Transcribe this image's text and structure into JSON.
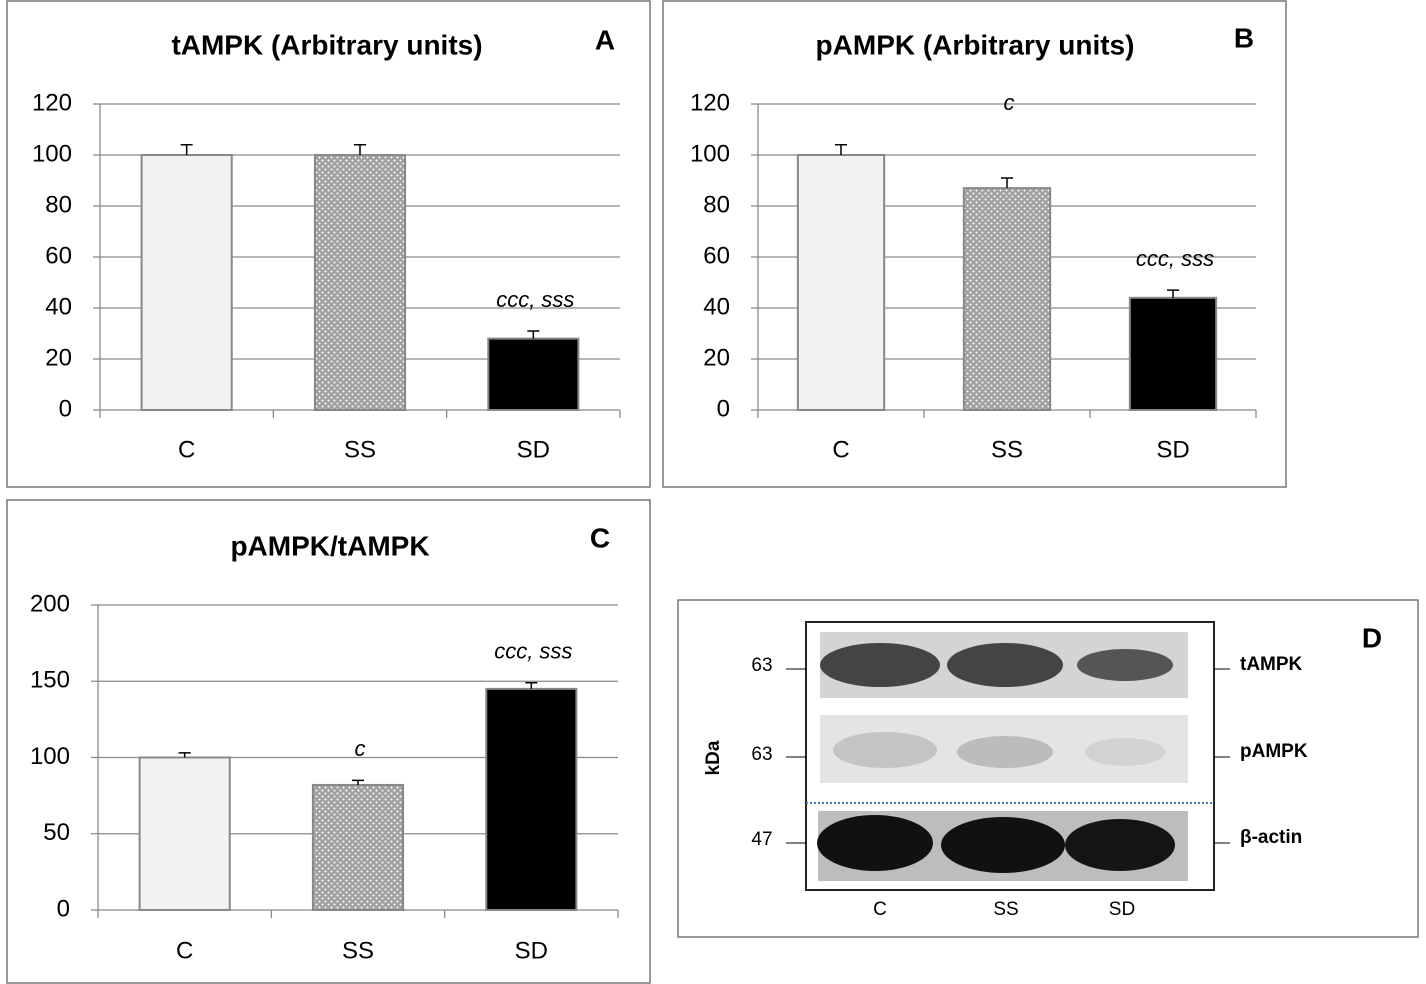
{
  "chart_data": [
    {
      "type": "bar",
      "title": "tAMPK (Arbitrary units)",
      "panel": "A",
      "categories": [
        "C",
        "SS",
        "SD"
      ],
      "values": [
        100,
        100,
        28
      ],
      "errors": [
        4,
        4,
        3
      ],
      "annotations": [
        null,
        null,
        "ccc, sss"
      ],
      "fills": [
        "#f2f2f2",
        "dots",
        "#000000"
      ],
      "ylim": [
        0,
        120
      ],
      "yticks": [
        0,
        20,
        40,
        60,
        80,
        100,
        120
      ],
      "grid": true
    },
    {
      "type": "bar",
      "title": "pAMPK (Arbitrary units)",
      "panel": "B",
      "categories": [
        "C",
        "SS",
        "SD"
      ],
      "values": [
        100,
        87,
        44
      ],
      "errors": [
        4,
        4,
        3
      ],
      "annotations": [
        null,
        "c",
        "ccc, sss"
      ],
      "fills": [
        "#f2f2f2",
        "dots",
        "#000000"
      ],
      "ylim": [
        0,
        120
      ],
      "yticks": [
        0,
        20,
        40,
        60,
        80,
        100,
        120
      ],
      "grid": true
    },
    {
      "type": "bar",
      "title": "pAMPK/tAMPK",
      "panel": "C",
      "categories": [
        "C",
        "SS",
        "SD"
      ],
      "values": [
        100,
        82,
        145
      ],
      "errors": [
        3,
        3,
        4
      ],
      "annotations": [
        null,
        "c",
        "ccc, sss"
      ],
      "fills": [
        "#f2f2f2",
        "dots",
        "#000000"
      ],
      "ylim": [
        0,
        200
      ],
      "yticks": [
        0,
        50,
        100,
        150,
        200
      ],
      "grid": true
    }
  ],
  "blot": {
    "panel": "D",
    "unit": "kDa",
    "markers": [
      "63",
      "63",
      "47"
    ],
    "rows": [
      "tAMPK",
      "pAMPK",
      "β-actin"
    ],
    "lanes": [
      "C",
      "SS",
      "SD"
    ]
  }
}
